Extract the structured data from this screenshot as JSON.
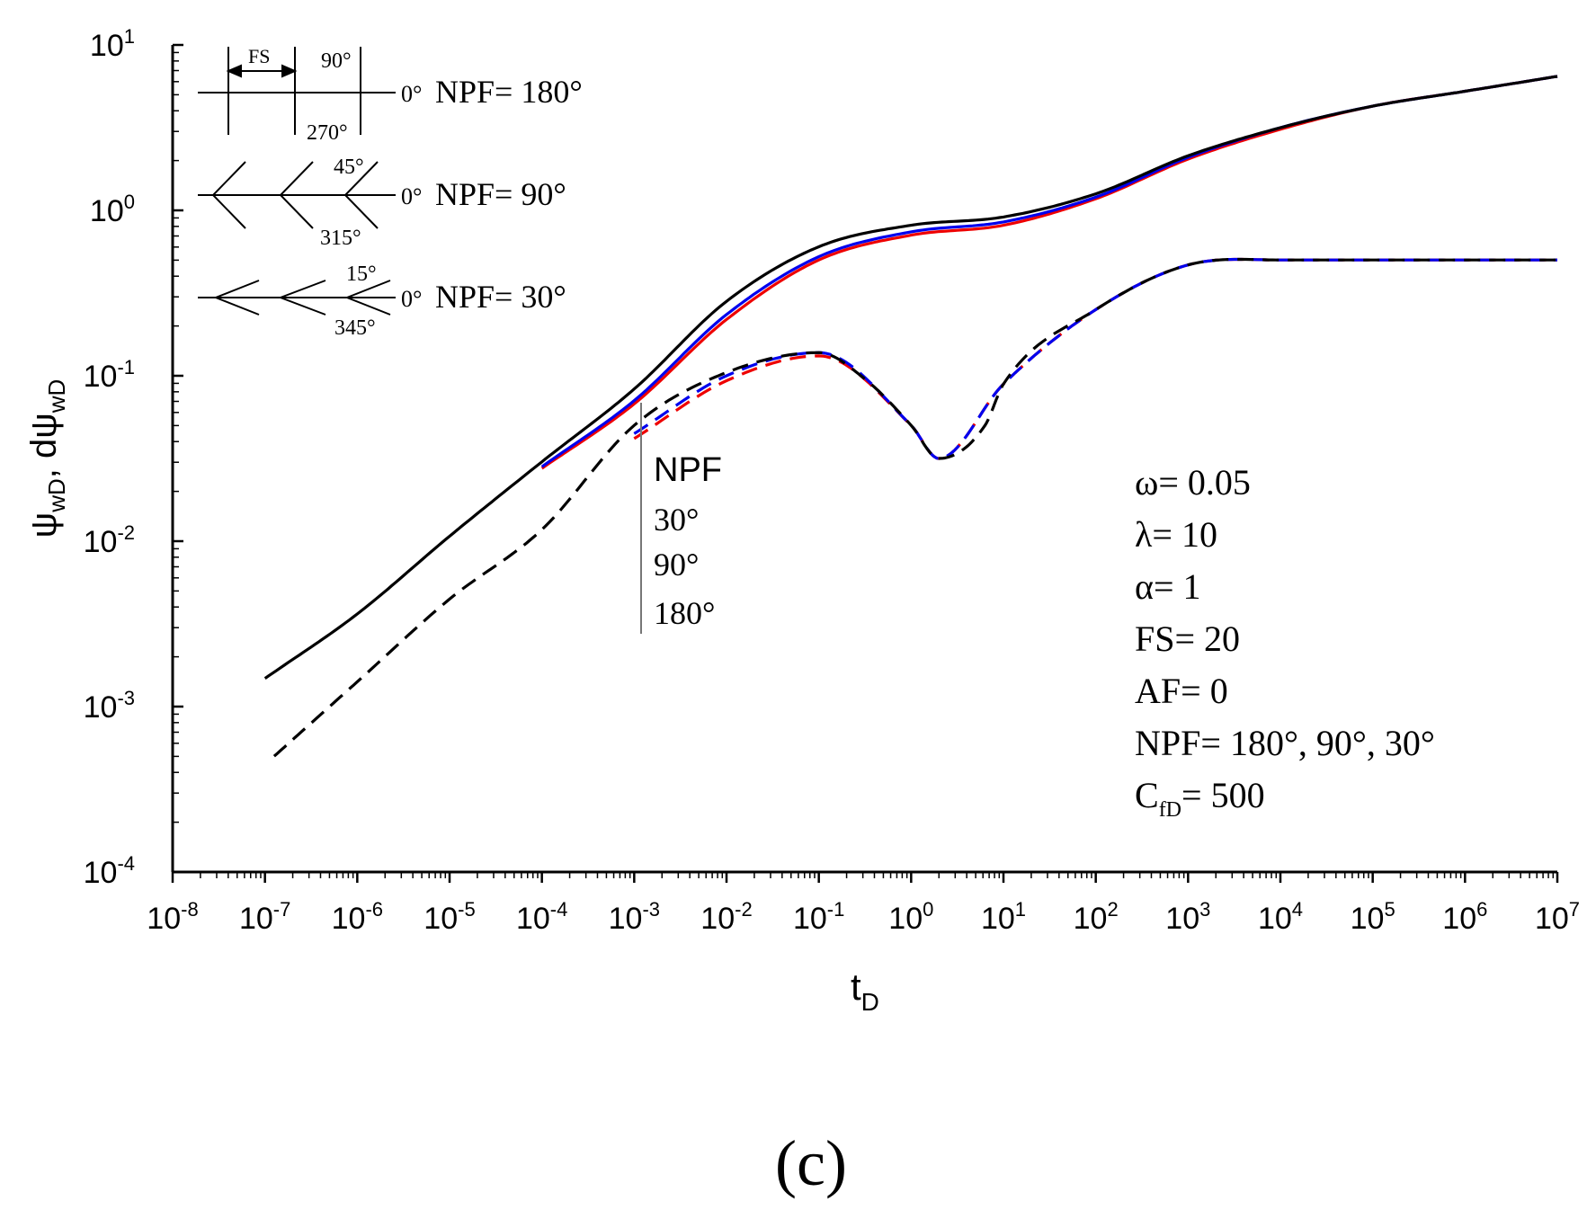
{
  "chart_data": {
    "type": "line",
    "x_scale": "log",
    "y_scale": "log",
    "xlim": [
      1e-08,
      10000000.0
    ],
    "ylim": [
      0.0001,
      10
    ],
    "xlabel": "t",
    "xlabel_sub": "D",
    "ylabel_parts": [
      "ψ",
      "wD",
      ", dψ",
      "wD"
    ],
    "x_tick_exponents": [
      "-8",
      "-7",
      "-6",
      "-5",
      "-4",
      "-3",
      "-2",
      "-1",
      "0",
      "1",
      "2",
      "3",
      "4",
      "5",
      "6",
      "7"
    ],
    "y_tick_exponents": [
      "-4",
      "-3",
      "-2",
      "-1",
      "0",
      "1"
    ],
    "tick_base": "10",
    "series": [
      {
        "name": "ψwD, NPF=180°",
        "kind": "pressure",
        "color": "#000000",
        "dashed": false,
        "points": [
          [
            -7,
            -2.83
          ],
          [
            -6,
            -2.44
          ],
          [
            -5,
            -1.97
          ],
          [
            -4,
            -1.52
          ],
          [
            -3,
            -1.08
          ],
          [
            -2,
            -0.55
          ],
          [
            -1,
            -0.22
          ],
          [
            0,
            -0.09
          ],
          [
            1,
            -0.04
          ],
          [
            2,
            0.1
          ],
          [
            3,
            0.33
          ],
          [
            4,
            0.5
          ],
          [
            5,
            0.63
          ],
          [
            6,
            0.72
          ],
          [
            7,
            0.81
          ]
        ]
      },
      {
        "name": "ψwD, NPF=90°",
        "kind": "pressure",
        "color": "#0000ee",
        "dashed": false,
        "points": [
          [
            -4,
            -1.55
          ],
          [
            -3,
            -1.15
          ],
          [
            -2,
            -0.63
          ],
          [
            -1,
            -0.28
          ],
          [
            0,
            -0.13
          ],
          [
            1,
            -0.07
          ],
          [
            2,
            0.08
          ],
          [
            3,
            0.32
          ],
          [
            4,
            0.5
          ],
          [
            5,
            0.63
          ],
          [
            6,
            0.72
          ],
          [
            7,
            0.81
          ]
        ]
      },
      {
        "name": "ψwD, NPF=30°",
        "kind": "pressure",
        "color": "#ee0000",
        "dashed": false,
        "points": [
          [
            -4,
            -1.56
          ],
          [
            -3,
            -1.17
          ],
          [
            -2,
            -0.66
          ],
          [
            -1,
            -0.3
          ],
          [
            0,
            -0.15
          ],
          [
            1,
            -0.09
          ],
          [
            2,
            0.07
          ],
          [
            3,
            0.31
          ],
          [
            4,
            0.49
          ],
          [
            5,
            0.63
          ],
          [
            6,
            0.72
          ],
          [
            7,
            0.81
          ]
        ]
      },
      {
        "name": "dψwD, NPF=180°",
        "kind": "derivative",
        "color": "#000000",
        "dashed": true,
        "points": [
          [
            -6.9,
            -3.3
          ],
          [
            -6,
            -2.85
          ],
          [
            -5,
            -2.35
          ],
          [
            -4,
            -1.93
          ],
          [
            -3,
            -1.3
          ],
          [
            -2,
            -0.98
          ],
          [
            -1,
            -0.86
          ],
          [
            -0.5,
            -1.02
          ],
          [
            0,
            -1.3
          ],
          [
            0.3,
            -1.5
          ],
          [
            0.8,
            -1.3
          ],
          [
            1,
            -1.05
          ],
          [
            2,
            -0.6
          ],
          [
            3,
            -0.33
          ],
          [
            4,
            -0.3
          ],
          [
            7,
            -0.3
          ]
        ]
      },
      {
        "name": "dψwD, NPF=90°",
        "kind": "derivative",
        "color": "#0000ee",
        "dashed": true,
        "points": [
          [
            -3,
            -1.35
          ],
          [
            -2,
            -1.0
          ],
          [
            -1,
            -0.86
          ],
          [
            0,
            -1.3
          ],
          [
            0.3,
            -1.5
          ],
          [
            1,
            -1.05
          ],
          [
            2,
            -0.6
          ],
          [
            3,
            -0.33
          ],
          [
            4,
            -0.3
          ],
          [
            7,
            -0.3
          ]
        ]
      },
      {
        "name": "dψwD, NPF=30°",
        "kind": "derivative",
        "color": "#ee0000",
        "dashed": true,
        "points": [
          [
            -3,
            -1.38
          ],
          [
            -2,
            -1.03
          ],
          [
            -1,
            -0.88
          ],
          [
            0,
            -1.3
          ],
          [
            0.3,
            -1.5
          ],
          [
            1,
            -1.05
          ],
          [
            2,
            -0.6
          ],
          [
            3,
            -0.33
          ],
          [
            4,
            -0.3
          ],
          [
            7,
            -0.3
          ]
        ]
      }
    ],
    "annotations": {
      "npf_marker": {
        "title": "NPF",
        "items": [
          "30°",
          "90°",
          "180°"
        ]
      },
      "parameters": [
        {
          "text": "ω= 0.05"
        },
        {
          "text": "λ= 10"
        },
        {
          "text": "α= 1"
        },
        {
          "text": "FS= 20"
        },
        {
          "text": "AF= 0"
        },
        {
          "text": "NPF= 180°, 90°, 30°"
        },
        {
          "text": "C",
          "sub": "fD",
          "rest": "= 500"
        }
      ],
      "schematics": [
        {
          "label": "NPF= 180°",
          "angle_zero": "0°",
          "angle_top": "90°",
          "angle_bottom": "270°",
          "spacing": "FS"
        },
        {
          "label": "NPF= 90°",
          "angle_zero": "0°",
          "angle_top": "45°",
          "angle_bottom": "315°"
        },
        {
          "label": "NPF= 30°",
          "angle_zero": "0°",
          "angle_top": "15°",
          "angle_bottom": "345°"
        }
      ]
    },
    "panel_label": "(c)"
  }
}
